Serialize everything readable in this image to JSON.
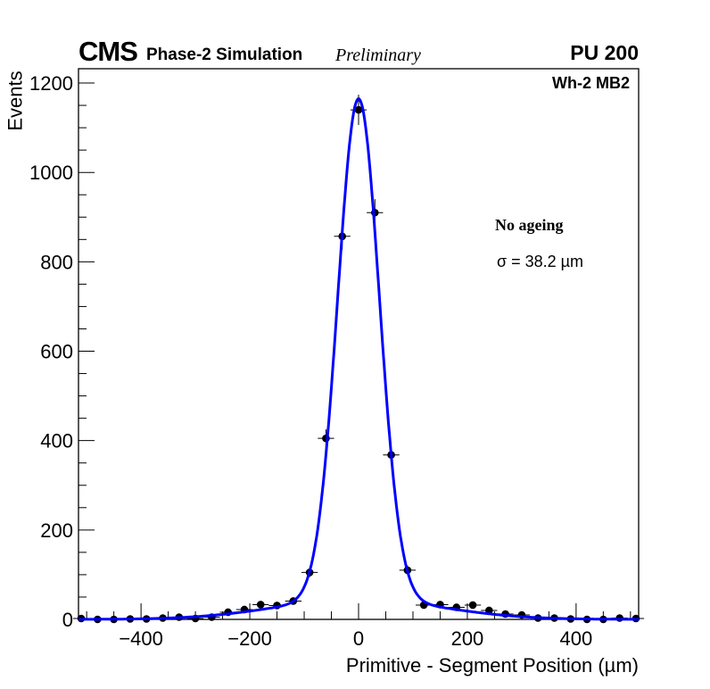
{
  "header": {
    "experiment": "CMS",
    "subtitle": "Phase-2 Simulation",
    "status": "Preliminary",
    "pileup": "PU 200"
  },
  "chart_data": {
    "type": "scatter",
    "title": "Wh-2 MB2",
    "xlabel": "Primitive - Segment Position (µm)",
    "ylabel": "Events",
    "xlim": [
      -515,
      515
    ],
    "ylim": [
      0,
      1232
    ],
    "xticks": [
      -400,
      -200,
      0,
      200,
      400
    ],
    "xtick_labels": [
      "−400",
      "−200",
      "0",
      "200",
      "400"
    ],
    "yticks": [
      0,
      200,
      400,
      600,
      800,
      1000,
      1200
    ],
    "ytick_labels": [
      "0",
      "200",
      "400",
      "600",
      "800",
      "1000",
      "1200"
    ],
    "bin_width": 30,
    "x": [
      -510,
      -480,
      -450,
      -420,
      -390,
      -360,
      -330,
      -300,
      -270,
      -240,
      -210,
      -180,
      -150,
      -120,
      -90,
      -60,
      -30,
      0,
      30,
      60,
      90,
      120,
      150,
      180,
      210,
      240,
      270,
      300,
      330,
      360,
      390,
      420,
      450,
      480,
      510
    ],
    "values": [
      2,
      0,
      0,
      1,
      1,
      3,
      5,
      2,
      5,
      16,
      22,
      33,
      31,
      41,
      105,
      405,
      857,
      1140,
      910,
      368,
      110,
      32,
      33,
      27,
      32,
      20,
      12,
      10,
      3,
      3,
      1,
      0,
      0,
      3,
      2
    ],
    "fit": {
      "name": "fit",
      "color": "#0000ff",
      "core_amplitude": 1120,
      "core_sigma": 38.2,
      "tail_amplitude": 45,
      "tail_sigma": 150
    },
    "marker_color": "#000000",
    "annotations": {
      "label": "No ageing",
      "sigma": "σ = 38.2 µm"
    }
  }
}
